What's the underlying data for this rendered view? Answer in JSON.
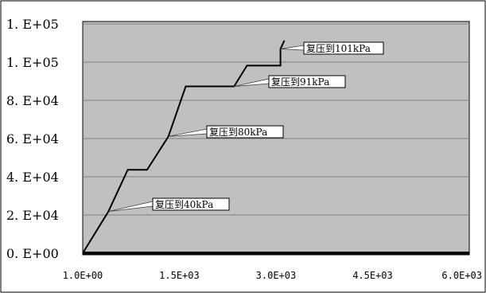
{
  "chart_data": {
    "type": "line",
    "title": "",
    "xlabel": "",
    "ylabel": "",
    "xlim": [
      1,
      6000
    ],
    "ylim": [
      0,
      100000
    ],
    "grid": true,
    "x_tick_labels": [
      "1.0E+00",
      "1.5E+03",
      "3.0E+03",
      "4.5E+03",
      "6.0E+03"
    ],
    "x_tick_values": [
      1,
      1500,
      3000,
      4500,
      6000
    ],
    "y_tick_labels": [
      "0. E+00",
      "2. E+04",
      "4. E+04",
      "6. E+04",
      "8. E+04",
      "1. E+05",
      "1. E+05"
    ],
    "y_tick_values": [
      0,
      20000,
      40000,
      60000,
      80000,
      100000,
      120000
    ],
    "series": [
      {
        "x": [
          1,
          400,
          700,
          1000,
          1330,
          1600,
          1950,
          2350,
          2550,
          2700,
          2950,
          3070,
          3070,
          3130
        ],
        "y": [
          0,
          20000,
          40000,
          40000,
          56000,
          80000,
          80000,
          80000,
          90000,
          90000,
          90000,
          90000,
          98000,
          102000
        ]
      }
    ],
    "annotations": [
      {
        "text": "复压到40kPa",
        "x": 400,
        "y": 20000
      },
      {
        "text": "复压到80kPa",
        "x": 1330,
        "y": 56000
      },
      {
        "text": "复压到91kPa",
        "x": 2350,
        "y": 80000
      },
      {
        "text": "复压到101kPa",
        "x": 3070,
        "y": 98000
      }
    ],
    "colors": {
      "plot_bg": "#c0c0c0",
      "grid": "#808080",
      "line": "#000000",
      "frame": "#000000"
    }
  }
}
